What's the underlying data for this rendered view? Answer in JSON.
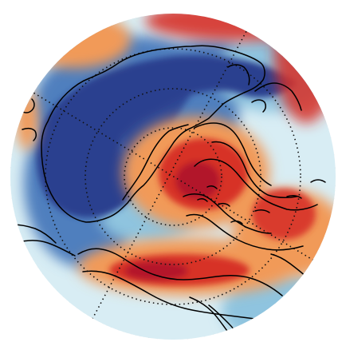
{
  "map": {
    "projection": "north-polar-stereographic",
    "field": "anomaly",
    "colors": {
      "deep_blue": "#2b3f8f",
      "mid_blue": "#4f7fbe",
      "light_blue": "#8fc4df",
      "pale_blue": "#d8edf4",
      "orange": "#f19a58",
      "red": "#d73027",
      "deep_red": "#b2182b",
      "coast": "#000000",
      "grid": "#111111",
      "background": "#ffffff"
    },
    "legend_visible": false,
    "grid_visible": true
  }
}
